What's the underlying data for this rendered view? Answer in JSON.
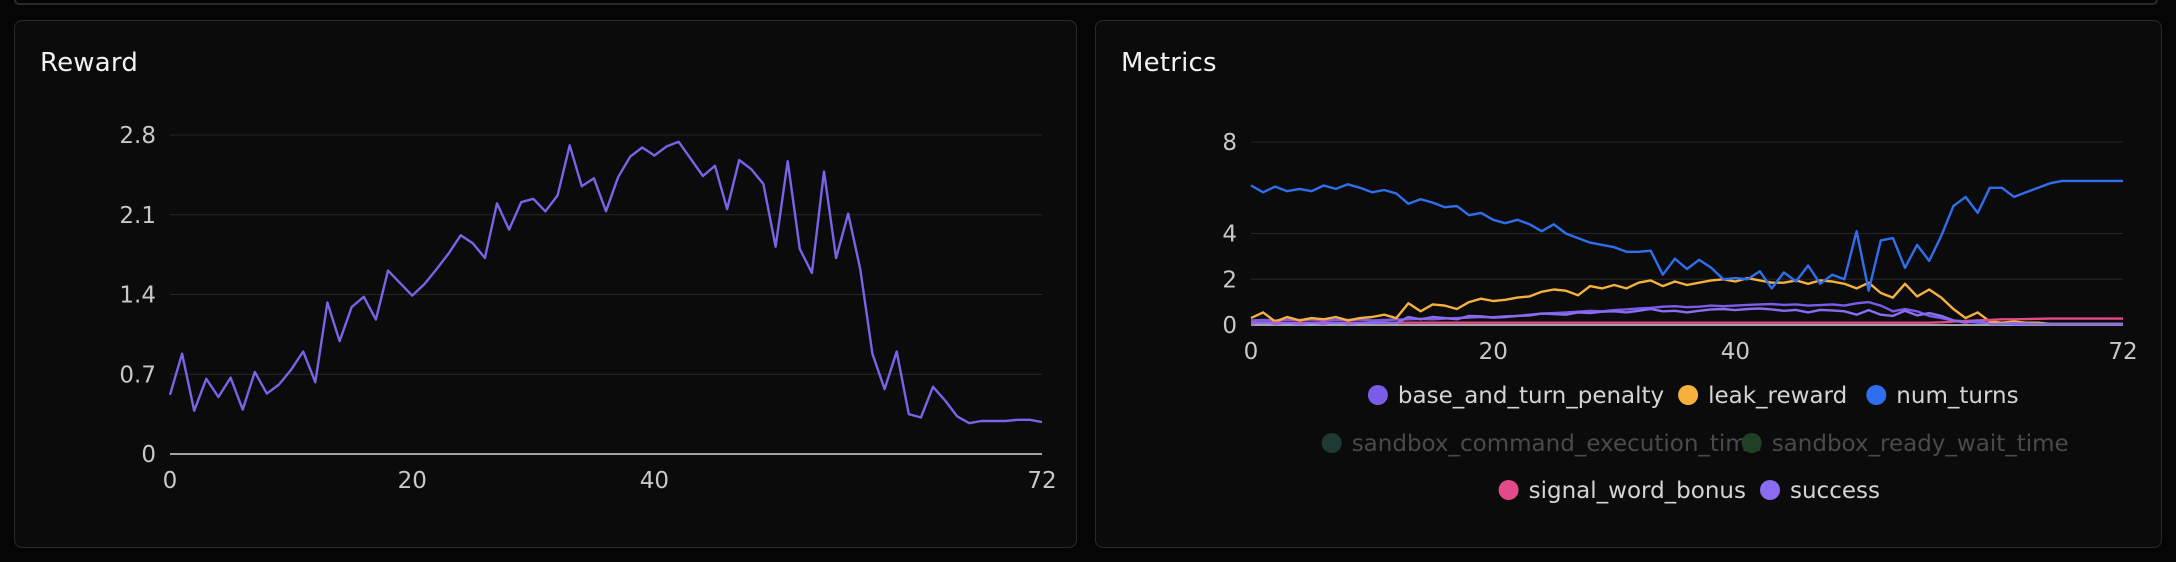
{
  "panels": {
    "reward": {
      "title": "Reward"
    },
    "metrics": {
      "title": "Metrics"
    }
  },
  "chart_data": [
    {
      "type": "line",
      "title": "Reward",
      "xlabel": "",
      "ylabel": "",
      "xlim": [
        0,
        72
      ],
      "ylim": [
        0,
        2.8
      ],
      "x_ticks": [
        0,
        20,
        40,
        72
      ],
      "y_ticks": [
        0,
        0.7,
        1.4,
        2.1,
        2.8
      ],
      "y_tick_labels": [
        "0",
        "0.7",
        "1.4",
        "2.1",
        "2.8"
      ],
      "grid": true,
      "color": "#7b62e6",
      "x": [
        0,
        1,
        2,
        3,
        4,
        5,
        6,
        7,
        8,
        9,
        10,
        11,
        12,
        13,
        14,
        15,
        16,
        17,
        18,
        19,
        20,
        21,
        22,
        23,
        24,
        25,
        26,
        27,
        28,
        29,
        30,
        31,
        32,
        33,
        34,
        35,
        36,
        37,
        38,
        39,
        40,
        41,
        42,
        43,
        44,
        45,
        46,
        47,
        48,
        49,
        50,
        51,
        52,
        53,
        54,
        55,
        56,
        57,
        58,
        59,
        60,
        61,
        62,
        63,
        64,
        65,
        66,
        67,
        68,
        69,
        70,
        71,
        72
      ],
      "values": [
        0.52,
        0.88,
        0.38,
        0.66,
        0.5,
        0.67,
        0.39,
        0.72,
        0.53,
        0.61,
        0.74,
        0.9,
        0.63,
        1.33,
        0.99,
        1.29,
        1.38,
        1.18,
        1.61,
        1.5,
        1.39,
        1.49,
        1.62,
        1.76,
        1.92,
        1.85,
        1.72,
        2.2,
        1.97,
        2.21,
        2.24,
        2.13,
        2.27,
        2.71,
        2.35,
        2.42,
        2.13,
        2.43,
        2.61,
        2.69,
        2.62,
        2.7,
        2.74,
        2.59,
        2.44,
        2.53,
        2.15,
        2.58,
        2.5,
        2.37,
        1.82,
        2.57,
        1.8,
        1.59,
        2.48,
        1.72,
        2.11,
        1.62,
        0.88,
        0.57,
        0.9,
        0.35,
        0.32,
        0.59,
        0.47,
        0.33,
        0.27,
        0.29,
        0.29,
        0.29,
        0.3,
        0.3,
        0.28
      ]
    },
    {
      "type": "line",
      "title": "Metrics",
      "xlabel": "",
      "ylabel": "",
      "xlim": [
        0,
        72
      ],
      "ylim": [
        0,
        8
      ],
      "x_ticks": [
        0,
        20,
        40,
        72
      ],
      "y_ticks": [
        0,
        2,
        4,
        8
      ],
      "y_tick_labels": [
        "0",
        "2",
        "4",
        "8"
      ],
      "grid": true,
      "legend_position": "bottom",
      "series": [
        {
          "name": "base_and_turn_penalty",
          "color": "#7b5ce6",
          "hidden": false,
          "values": [
            0.2,
            0.22,
            0.2,
            0.23,
            0.22,
            0.24,
            0.2,
            0.23,
            0.22,
            0.24,
            0.2,
            0.22,
            0.24,
            0.25,
            0.27,
            0.25,
            0.28,
            0.3,
            0.32,
            0.35,
            0.34,
            0.38,
            0.4,
            0.45,
            0.5,
            0.52,
            0.55,
            0.58,
            0.62,
            0.6,
            0.65,
            0.68,
            0.72,
            0.75,
            0.8,
            0.82,
            0.78,
            0.8,
            0.85,
            0.82,
            0.85,
            0.88,
            0.9,
            0.92,
            0.88,
            0.9,
            0.85,
            0.87,
            0.9,
            0.85,
            0.95,
            1.0,
            0.85,
            0.6,
            0.7,
            0.6,
            0.4,
            0.3,
            0.2,
            0.15,
            0.1,
            0.08,
            0.06,
            0.05,
            0.05,
            0.05,
            0.05,
            0.05,
            0.05,
            0.05,
            0.05,
            0.05,
            0.05
          ]
        },
        {
          "name": "leak_reward",
          "color": "#f5b13d",
          "hidden": false,
          "values": [
            0.3,
            0.55,
            0.15,
            0.35,
            0.2,
            0.3,
            0.25,
            0.35,
            0.2,
            0.3,
            0.35,
            0.45,
            0.3,
            0.95,
            0.6,
            0.9,
            0.85,
            0.7,
            1.0,
            1.15,
            1.05,
            1.1,
            1.2,
            1.25,
            1.45,
            1.55,
            1.5,
            1.3,
            1.7,
            1.6,
            1.75,
            1.6,
            1.85,
            1.95,
            1.7,
            1.9,
            1.75,
            1.85,
            1.95,
            2.0,
            1.9,
            2.05,
            1.95,
            1.85,
            1.85,
            1.95,
            1.8,
            1.95,
            1.9,
            1.8,
            1.6,
            1.85,
            1.4,
            1.2,
            1.8,
            1.25,
            1.55,
            1.2,
            0.7,
            0.3,
            0.55,
            0.15,
            0.1,
            0.15,
            0.1,
            0.1,
            0.05,
            0.05,
            0.05,
            0.05,
            0.05,
            0.05,
            0.05
          ]
        },
        {
          "name": "num_turns",
          "color": "#2f6fed",
          "hidden": false,
          "values": [
            6.1,
            5.8,
            6.05,
            5.85,
            5.95,
            5.85,
            6.1,
            5.95,
            6.15,
            6.0,
            5.8,
            5.9,
            5.75,
            5.3,
            5.5,
            5.35,
            5.15,
            5.2,
            4.8,
            4.9,
            4.6,
            4.45,
            4.6,
            4.4,
            4.1,
            4.4,
            4.0,
            3.8,
            3.6,
            3.5,
            3.4,
            3.2,
            3.2,
            3.25,
            2.2,
            2.9,
            2.45,
            2.85,
            2.5,
            2.0,
            2.05,
            2.0,
            2.35,
            1.6,
            2.3,
            1.9,
            2.6,
            1.8,
            2.2,
            2.0,
            4.1,
            1.5,
            3.7,
            3.8,
            2.5,
            3.5,
            2.8,
            3.9,
            5.2,
            5.6,
            4.9,
            6.0,
            6.0,
            5.6,
            5.8,
            6.0,
            6.2,
            6.3,
            6.3,
            6.3,
            6.3,
            6.3,
            6.3
          ]
        },
        {
          "name": "sandbox_command_execution_time",
          "color": "#1f3a32",
          "hidden": true,
          "values": []
        },
        {
          "name": "sandbox_ready_wait_time",
          "color": "#1f4024",
          "hidden": true,
          "values": []
        },
        {
          "name": "signal_word_bonus",
          "color": "#e24a8a",
          "hidden": false,
          "values": [
            0.1,
            0.1,
            0.1,
            0.1,
            0.1,
            0.1,
            0.1,
            0.1,
            0.1,
            0.1,
            0.1,
            0.1,
            0.1,
            0.1,
            0.1,
            0.1,
            0.1,
            0.1,
            0.1,
            0.1,
            0.1,
            0.1,
            0.1,
            0.1,
            0.1,
            0.1,
            0.1,
            0.1,
            0.1,
            0.1,
            0.1,
            0.1,
            0.1,
            0.1,
            0.1,
            0.1,
            0.1,
            0.1,
            0.1,
            0.1,
            0.1,
            0.1,
            0.1,
            0.1,
            0.1,
            0.1,
            0.1,
            0.1,
            0.1,
            0.1,
            0.1,
            0.1,
            0.1,
            0.1,
            0.1,
            0.1,
            0.1,
            0.12,
            0.15,
            0.18,
            0.2,
            0.22,
            0.25,
            0.25,
            0.26,
            0.27,
            0.28,
            0.28,
            0.28,
            0.28,
            0.28,
            0.28,
            0.28
          ]
        },
        {
          "name": "success",
          "color": "#8a6cf0",
          "hidden": false,
          "values": [
            0.05,
            0.1,
            0.05,
            0.08,
            0.05,
            0.08,
            0.05,
            0.1,
            0.05,
            0.08,
            0.1,
            0.12,
            0.08,
            0.35,
            0.25,
            0.35,
            0.3,
            0.25,
            0.4,
            0.38,
            0.32,
            0.35,
            0.4,
            0.42,
            0.5,
            0.48,
            0.45,
            0.55,
            0.52,
            0.58,
            0.6,
            0.55,
            0.62,
            0.7,
            0.6,
            0.62,
            0.55,
            0.62,
            0.68,
            0.7,
            0.65,
            0.7,
            0.72,
            0.68,
            0.62,
            0.66,
            0.55,
            0.66,
            0.64,
            0.6,
            0.45,
            0.65,
            0.45,
            0.4,
            0.62,
            0.42,
            0.52,
            0.4,
            0.2,
            0.1,
            0.2,
            0.05,
            0.05,
            0.08,
            0.06,
            0.05,
            0.04,
            0.04,
            0.04,
            0.04,
            0.04,
            0.04,
            0.04
          ]
        }
      ]
    }
  ]
}
